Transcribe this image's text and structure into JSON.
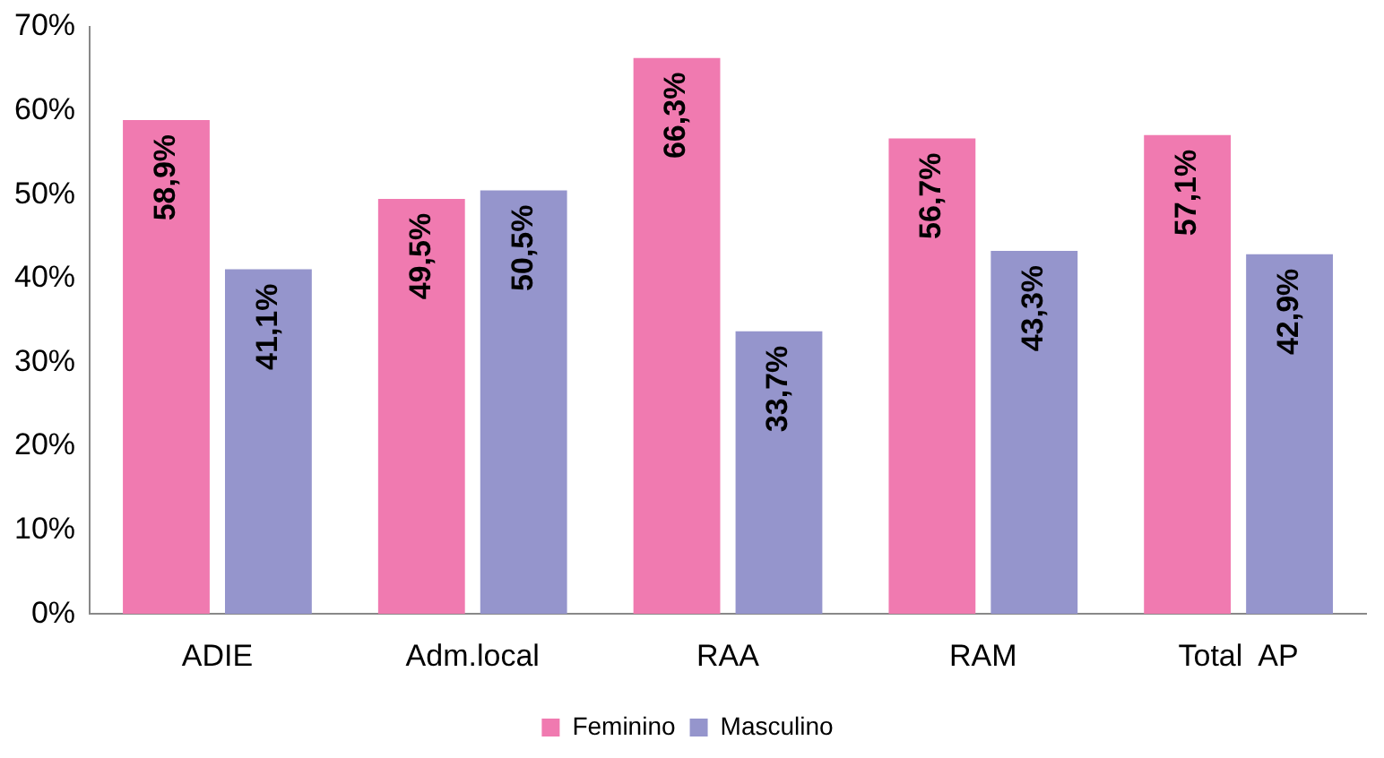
{
  "chart_data": {
    "type": "bar",
    "categories": [
      "ADIE",
      "Adm.local",
      "RAA",
      "RAM",
      "Total  AP"
    ],
    "series": [
      {
        "name": "Feminino",
        "color": "#f07ab0",
        "values": [
          58.9,
          49.5,
          66.3,
          56.7,
          57.1
        ],
        "value_labels": [
          "58,9%",
          "49,5%",
          "66,3%",
          "56,7%",
          "57,1%"
        ]
      },
      {
        "name": "Masculino",
        "color": "#9595cc",
        "values": [
          41.1,
          50.5,
          33.7,
          43.3,
          42.9
        ],
        "value_labels": [
          "41,1%",
          "50,5%",
          "33,7%",
          "43,3%",
          "42,9%"
        ]
      }
    ],
    "ylim": [
      0,
      70
    ],
    "yticks": [
      {
        "value": 0,
        "label": "0%"
      },
      {
        "value": 10,
        "label": "10%"
      },
      {
        "value": 20,
        "label": "20%"
      },
      {
        "value": 30,
        "label": "30%"
      },
      {
        "value": 40,
        "label": "40%"
      },
      {
        "value": 50,
        "label": "50%"
      },
      {
        "value": 60,
        "label": "60%"
      },
      {
        "value": 70,
        "label": "70%"
      }
    ],
    "grid": false,
    "legend": "bottom"
  }
}
